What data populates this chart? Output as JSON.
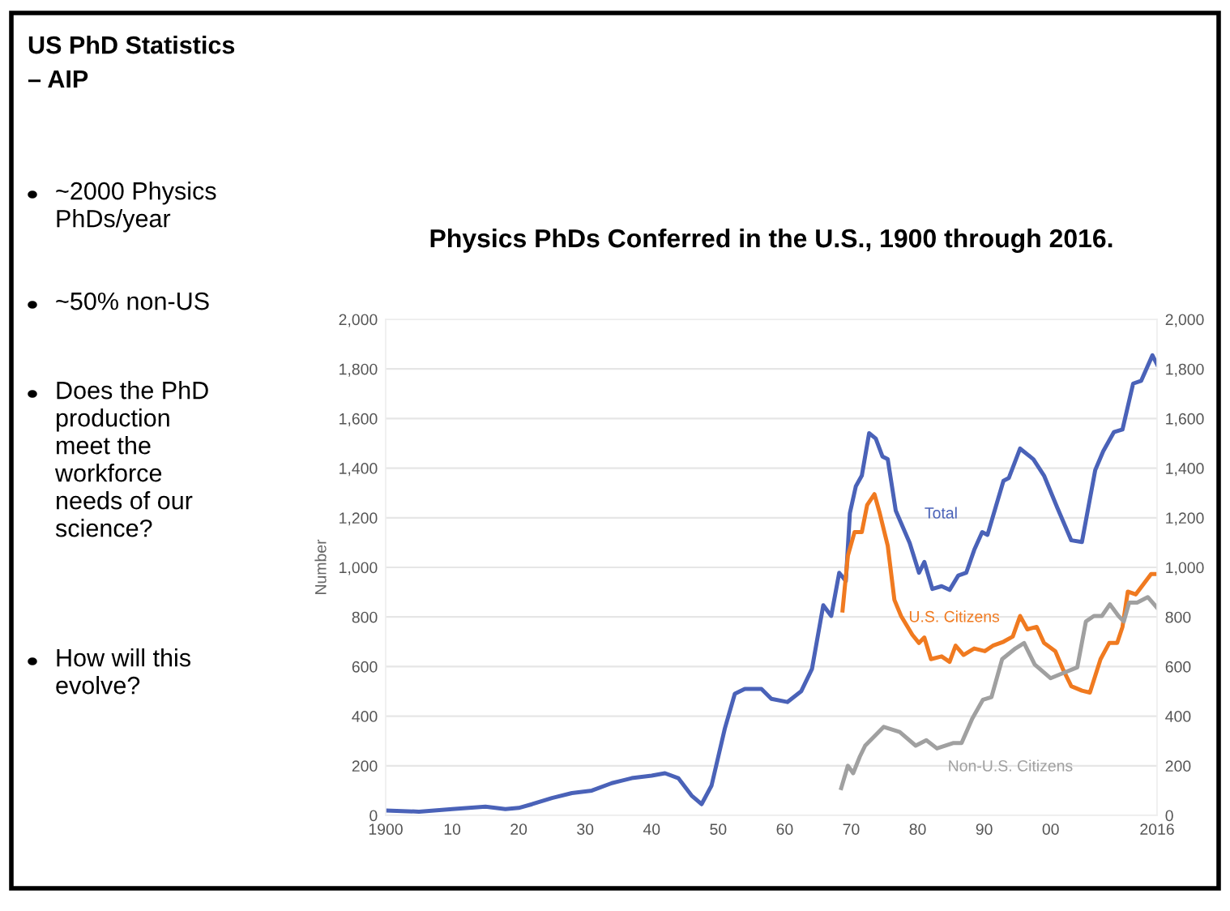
{
  "chart_data": {
    "type": "line",
    "title": "Physics PhDs Conferred in the U.S., 1900 through 2016.",
    "ylabel": "Number",
    "annotations": [
      "US PhD Statistics\n– AIP",
      "~2000 Physics\nPhDs/year",
      "~50% non-US",
      "Does the PhD\nproduction\nmeet the\nworkforce\nneeds of our\nscience?",
      "How will this\nevolve?"
    ],
    "xlim": [
      1900,
      2016
    ],
    "xticks": [
      {
        "value": 1900,
        "label": "1900"
      },
      {
        "value": 1910,
        "label": "10"
      },
      {
        "value": 1920,
        "label": "20"
      },
      {
        "value": 1930,
        "label": "30"
      },
      {
        "value": 1940,
        "label": "40"
      },
      {
        "value": 1950,
        "label": "50"
      },
      {
        "value": 1960,
        "label": "60"
      },
      {
        "value": 1970,
        "label": "70"
      },
      {
        "value": 1980,
        "label": "80"
      },
      {
        "value": 1990,
        "label": "90"
      },
      {
        "value": 2000,
        "label": "00"
      },
      {
        "value": 2016,
        "label": "2016"
      }
    ],
    "ylim": [
      0,
      2000
    ],
    "yticks": [
      0,
      200,
      400,
      600,
      800,
      {
        "value": 1000,
        "label": "1,000"
      },
      {
        "value": 1200,
        "label": "1,200"
      },
      {
        "value": 1400,
        "label": "1,400"
      },
      {
        "value": 1600,
        "label": "1,600"
      },
      {
        "value": 1800,
        "label": "1,800"
      },
      {
        "value": 2000,
        "label": "2,000"
      }
    ],
    "y2lim": [
      0,
      2000
    ],
    "y2ticks": [
      0,
      200,
      400,
      600,
      800,
      {
        "value": 1000,
        "label": "1,000"
      },
      {
        "value": 1200,
        "label": "1,200"
      },
      {
        "value": 1400,
        "label": "1,400"
      },
      {
        "value": 1600,
        "label": "1,600"
      },
      {
        "value": 1800,
        "label": "1,800"
      },
      {
        "value": 2000,
        "label": "2,000"
      }
    ],
    "grid": "y",
    "legend": false,
    "series": [
      {
        "name": "Total",
        "color": "#4a62b8",
        "x": [
          1900,
          1905,
          1910,
          1915,
          1918,
          1920,
          1922,
          1925,
          1928,
          1931,
          1934,
          1937,
          1940,
          1942,
          1944,
          1946,
          1947.5,
          1949,
          1951,
          1952.5,
          1954,
          1956.5,
          1958,
          1960.4,
          1962.5,
          1964.1,
          1965.8,
          1967,
          1968.2,
          1969.2,
          1969.8,
          1970.7,
          1971.6,
          1972.7,
          1973.7,
          1974.7,
          1975.5,
          1976.7,
          1978.8,
          1980.2,
          1981,
          1982.2,
          1983.6,
          1984.8,
          1986.1,
          1987.3,
          1988.5,
          1989.7,
          1990.5,
          1991.7,
          1992.9,
          1993.7,
          1995.4,
          1997.4,
          1999,
          2001,
          2003.1,
          2004.7,
          2006.7,
          2007.9,
          2009.5,
          2010.8,
          2012.4,
          2013.6,
          2015.3,
          2016
        ],
        "values": [
          20,
          15,
          25,
          35,
          25,
          30,
          45,
          70,
          90,
          100,
          130,
          150,
          160,
          170,
          150,
          80,
          45,
          120,
          350,
          490,
          510,
          510,
          470,
          457,
          501,
          590,
          847,
          804,
          978,
          945,
          1218,
          1327,
          1370,
          1541,
          1519,
          1447,
          1436,
          1229,
          1098,
          978,
          1022,
          913,
          924,
          909,
          967,
          978,
          1070,
          1142,
          1131,
          1240,
          1349,
          1360,
          1479,
          1436,
          1370,
          1240,
          1109,
          1102,
          1392,
          1468,
          1545,
          1556,
          1741,
          1752,
          1855,
          1818
        ]
      },
      {
        "name": "U.S. Citizens",
        "color": "#f07a20",
        "x": [
          1968.7,
          1969.5,
          1970.5,
          1971.6,
          1972.4,
          1973.5,
          1974.3,
          1975.5,
          1976.5,
          1977.5,
          1979.2,
          1980.2,
          1981,
          1982,
          1983.6,
          1984.8,
          1985.7,
          1986.9,
          1988.5,
          1990.1,
          1991.3,
          1992.9,
          1994.3,
          1995.4,
          1996.5,
          1997.9,
          1999,
          2000.7,
          2001.9,
          2003.1,
          2004.7,
          2005.9,
          2007.5,
          2008.8,
          2010,
          2010.8,
          2011.6,
          2012.8,
          2014,
          2015.1,
          2016
        ],
        "values": [
          826,
          1046,
          1142,
          1142,
          1251,
          1295,
          1218,
          1087,
          869,
          804,
          728,
          695,
          717,
          630,
          641,
          619,
          684,
          647,
          673,
          662,
          684,
          700,
          721,
          804,
          750,
          760,
          695,
          662,
          586,
          521,
          503,
          495,
          630,
          695,
          695,
          760,
          902,
          891,
          934,
          973,
          973
        ]
      },
      {
        "name": "Non-U.S. Citizens",
        "color": "#a0a0a0",
        "x": [
          1968.5,
          1969.5,
          1970.3,
          1971.3,
          1972.1,
          1974.9,
          1977.3,
          1979.7,
          1981.3,
          1982.9,
          1985.4,
          1986.6,
          1988.2,
          1989.8,
          1991.1,
          1992.7,
          1994.7,
          1996,
          1997.6,
          2000,
          2002,
          2004,
          2005.3,
          2006.5,
          2007.7,
          2008.9,
          2010.2,
          2011,
          2011.8,
          2013,
          2014.6,
          2016
        ],
        "values": [
          110,
          200,
          170,
          237,
          281,
          357,
          336,
          281,
          303,
          270,
          292,
          292,
          390,
          466,
          477,
          630,
          673,
          695,
          608,
          553,
          575,
          597,
          782,
          804,
          804,
          851,
          804,
          782,
          858,
          858,
          880,
          837
        ]
      }
    ]
  }
}
